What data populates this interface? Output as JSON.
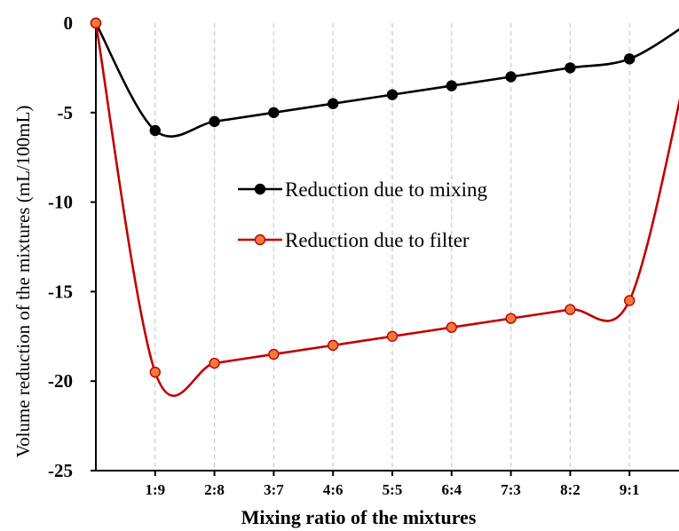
{
  "chart_data": {
    "type": "line",
    "xlabel": "Mixing ratio of the mixtures",
    "ylabel": "Volume reduction of the mixtures (mL/100mL)",
    "categories": [
      "",
      "1:9",
      "2:8",
      "3:7",
      "4:6",
      "5:5",
      "6:4",
      "7:3",
      "8:2",
      "9:1",
      ""
    ],
    "x_tick_labels": [
      "1:9",
      "2:8",
      "3:7",
      "4:6",
      "5:5",
      "6:4",
      "7:3",
      "8:2",
      "9:1"
    ],
    "y_tick_labels": [
      "0",
      "-5",
      "-10",
      "-15",
      "-20",
      "-25"
    ],
    "ylim": [
      -25,
      0
    ],
    "grid": "vertical dashed",
    "legend_position": "center",
    "series": [
      {
        "name": "Reduction due to mixing",
        "color": "#000000",
        "marker_fill": "#000000",
        "values": [
          0,
          -6,
          -5.5,
          -5,
          -4.5,
          -4,
          -3.5,
          -3,
          -2.5,
          -2,
          0
        ]
      },
      {
        "name": "Reduction due to filter",
        "color": "#c00000",
        "marker_fill": "#f07a3a",
        "values": [
          0,
          -19.5,
          -19,
          -18.5,
          -18,
          -17.5,
          -17,
          -16.5,
          -16,
          -15.5,
          -2
        ]
      }
    ]
  }
}
